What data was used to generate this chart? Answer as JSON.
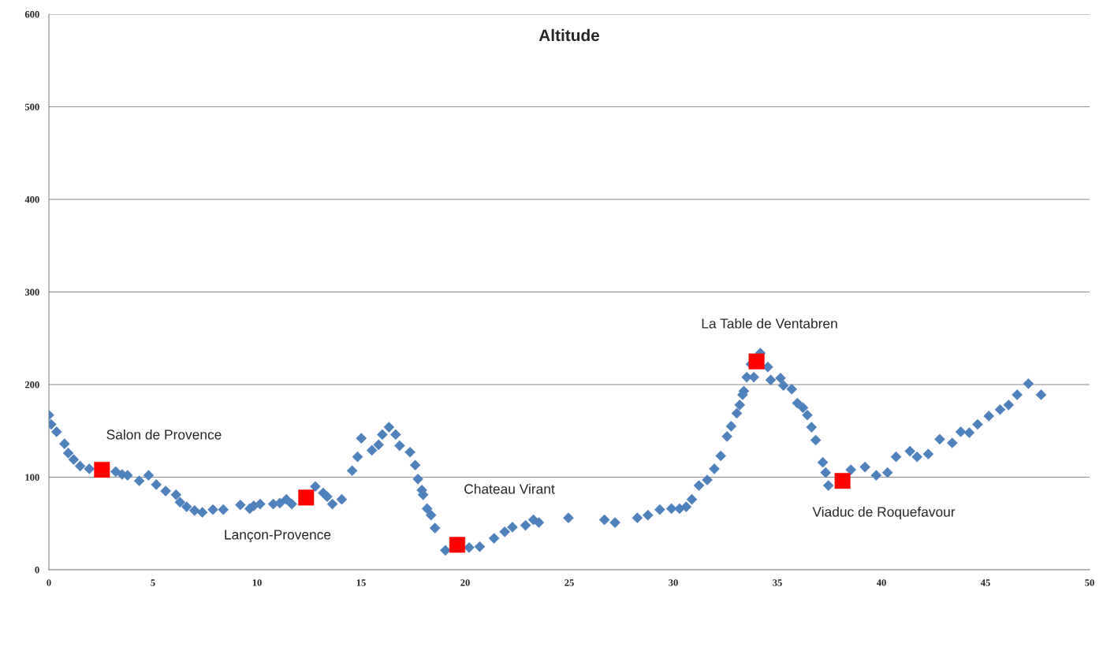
{
  "chart_data": {
    "type": "scatter",
    "title": "Altitude",
    "grid": "y",
    "legend": false,
    "xlim": [
      0,
      50
    ],
    "xticks": [
      0,
      5,
      10,
      15,
      20,
      25,
      30,
      35,
      40,
      45,
      50
    ],
    "ylim": [
      0,
      600
    ],
    "yticks": [
      0,
      100,
      200,
      300,
      400,
      500,
      600
    ],
    "series": [
      {
        "color": "#4f81bd",
        "marker": "diamond",
        "x": [
          0,
          0.11,
          0.37,
          0.75,
          0.93,
          1.19,
          1.5,
          1.94,
          3.21,
          3.52,
          3.78,
          4.34,
          4.79,
          5.16,
          5.61,
          6.11,
          6.3,
          6.62,
          7.0,
          7.37,
          7.88,
          8.38,
          9.2,
          9.65,
          9.84,
          10.15,
          10.78,
          11.1,
          11.41,
          11.67,
          12.8,
          13.18,
          13.37,
          13.62,
          14.07,
          14.57,
          14.83,
          15.01,
          15.52,
          15.84,
          16.02,
          16.34,
          16.66,
          16.85,
          17.35,
          17.6,
          17.73,
          17.92,
          17.98,
          18.17,
          18.36,
          18.55,
          19.05,
          20.19,
          20.7,
          21.39,
          21.9,
          22.27,
          22.9,
          23.28,
          23.54,
          24.96,
          26.69,
          27.2,
          28.27,
          28.78,
          29.35,
          29.91,
          30.3,
          30.62,
          30.89,
          31.23,
          31.63,
          31.97,
          32.28,
          32.58,
          32.78,
          33.05,
          33.19,
          33.33,
          33.39,
          33.53,
          33.73,
          33.87,
          34.18,
          34.54,
          34.68,
          35.15,
          35.29,
          35.69,
          35.96,
          36.23,
          36.44,
          36.64,
          36.84,
          37.18,
          37.32,
          37.45,
          38.53,
          39.21,
          39.75,
          40.29,
          40.7,
          41.37,
          41.71,
          42.25,
          42.8,
          43.4,
          43.81,
          44.22,
          44.62,
          45.16,
          45.7,
          46.11,
          46.52,
          47.06,
          47.67
        ],
        "values": [
          167,
          157,
          149,
          136,
          126,
          119,
          112,
          109,
          106,
          103,
          102,
          96,
          102,
          92,
          85,
          81,
          73,
          68,
          64,
          62,
          65,
          65,
          70,
          66,
          69,
          71,
          71,
          72,
          76,
          71,
          90,
          83,
          79,
          71,
          76,
          107,
          122,
          142,
          129,
          135,
          146,
          154,
          146,
          134,
          127,
          113,
          98,
          86,
          81,
          66,
          59,
          45,
          21,
          24,
          25,
          34,
          41,
          46,
          48,
          54,
          51,
          56,
          54,
          51,
          56,
          59,
          65,
          66,
          66,
          68,
          76,
          91,
          97,
          109,
          123,
          144,
          155,
          169,
          178,
          189,
          193,
          208,
          222,
          208,
          234,
          219,
          205,
          207,
          199,
          195,
          180,
          175,
          167,
          154,
          140,
          116,
          105,
          91,
          108,
          111,
          102,
          105,
          122,
          128,
          122,
          125,
          141,
          137,
          149,
          148,
          157,
          166,
          173,
          178,
          189,
          201,
          189
        ]
      },
      {
        "color": "#ff0000",
        "marker": "square",
        "x": [
          2.55,
          12.36,
          19.62,
          34.0,
          38.13
        ],
        "values": [
          108,
          78,
          27,
          225,
          96
        ]
      }
    ],
    "annotations": [
      "Salon de Provence",
      "Lançon-Provence",
      "Chateau Virant",
      "La Table de Ventabren",
      "Viaduc de Roquefavour"
    ]
  }
}
